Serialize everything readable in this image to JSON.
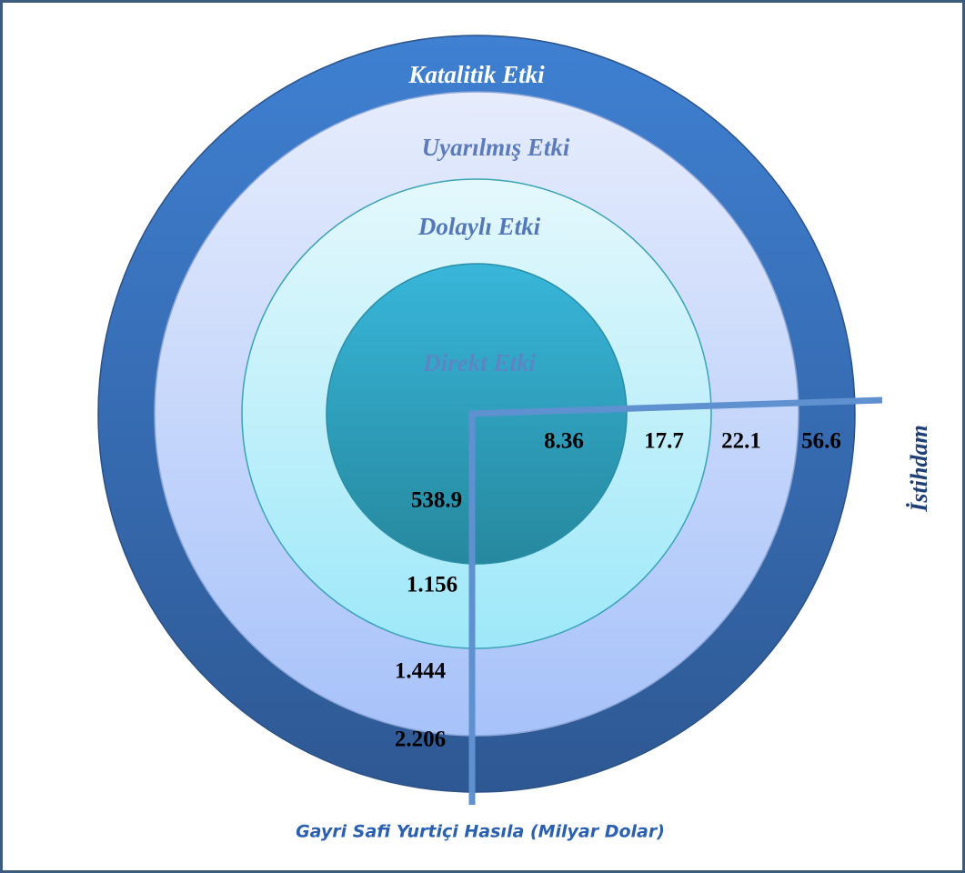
{
  "rings": [
    {
      "label": "Katalitik Etki",
      "gdp": "2.206",
      "employment": "56.6"
    },
    {
      "label": "Uyarılmış Etki",
      "gdp": "1.444",
      "employment": "22.1"
    },
    {
      "label": "Dolaylı Etki",
      "gdp": "1.156",
      "employment": "17.7"
    },
    {
      "label": "Direkt Etki",
      "gdp": "538.9",
      "employment": "8.36"
    }
  ],
  "employment_axis_label": "İstihdam",
  "gdp_axis_label": "Gayri Safi Yurtiçi Hasıla (Milyar Dolar)"
}
